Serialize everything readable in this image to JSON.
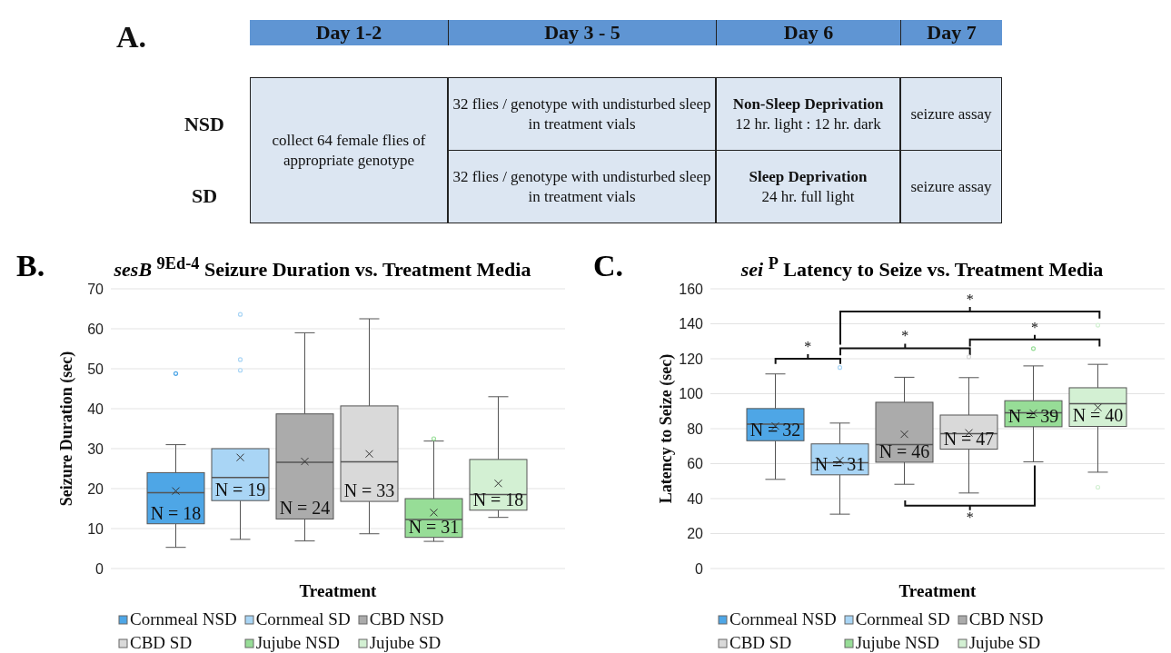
{
  "chart_data": [
    {
      "type": "other",
      "annotations": [
        "A.",
        "Day 1-2",
        "Day 3 - 5",
        "Day 6",
        "Day 7",
        "NSD",
        "SD",
        "collect 64 female flies of appropriate genotype",
        "32 flies / genotype with undisturbed sleep in treatment vials",
        "Non-Sleep Deprivation",
        "12 hr. light : 12 hr. dark",
        "seizure assay",
        "32 flies / genotype with undisturbed sleep in treatment vials",
        "Sleep Deprivation",
        "24 hr. full light",
        "seizure assay"
      ]
    },
    {
      "type": "box",
      "title": "sesB $^{9Ed-4}$ Seizure Duration vs. Treatment Media",
      "xlabel": "Treatment",
      "ylabel": "Seizure Duration (sec)",
      "categories": [
        null
      ],
      "series": [
        {
          "name": "Cornmeal NSD",
          "color": "#4ea6e6",
          "boxes": [
            {
              "low": 5.3,
              "q1": 11.2,
              "median": 19,
              "q3": 24,
              "high": 31,
              "mean": 19.4,
              "outliers": [
                48.8
              ]
            }
          ]
        },
        {
          "name": "Cornmeal SD",
          "color": "#a9d5f5",
          "boxes": [
            {
              "low": 7.3,
              "q1": 17,
              "median": 22.8,
              "q3": 30,
              "high": 30,
              "mean": 27.8,
              "outliers": [
                49.6,
                52.3,
                63.6
              ]
            }
          ]
        },
        {
          "name": "CBD NSD",
          "color": "#ababab",
          "boxes": [
            {
              "low": 6.9,
              "q1": 12.4,
              "median": 26.6,
              "q3": 38.7,
              "high": 59,
              "mean": 26.8
            }
          ]
        },
        {
          "name": "CBD SD",
          "color": "#d9d9d9",
          "boxes": [
            {
              "low": 8.7,
              "q1": 16.8,
              "median": 26.7,
              "q3": 40.7,
              "high": 62.5,
              "mean": 28.7
            }
          ]
        },
        {
          "name": "Jujube NSD",
          "color": "#97dd97",
          "boxes": [
            {
              "low": 6.8,
              "q1": 7.8,
              "median": 12.3,
              "q3": 17.5,
              "high": 31.9,
              "mean": 14,
              "outliers": [
                32.5
              ]
            }
          ]
        },
        {
          "name": "Jujube SD",
          "color": "#d3f0d3",
          "boxes": [
            {
              "low": 12.8,
              "q1": 14.6,
              "median": 18.5,
              "q3": 27.3,
              "high": 43,
              "mean": 21.3
            }
          ]
        }
      ],
      "ylim": [
        0,
        70
      ],
      "yticks": [
        0,
        10,
        20,
        30,
        40,
        50,
        60,
        70
      ],
      "grid": "y",
      "legend": "bottom",
      "tick_labels": "y",
      "annotations": [
        "B.",
        "N = 18",
        "N = 19",
        "N = 24",
        "N = 33",
        "N = 31",
        "N = 18"
      ]
    },
    {
      "type": "box",
      "title": "sei $^{P}$ Latency to Seize vs. Treatment Media",
      "xlabel": "Treatment",
      "ylabel": "Latency to Seize (sec)",
      "categories": [
        null
      ],
      "series": [
        {
          "name": "Cornmeal NSD",
          "color": "#4ea6e6",
          "boxes": [
            {
              "low": 51,
              "q1": 73.1,
              "median": 82.6,
              "q3": 91.5,
              "high": 111.3,
              "mean": 81.5
            }
          ]
        },
        {
          "name": "Cornmeal SD",
          "color": "#a9d5f5",
          "boxes": [
            {
              "low": 31.1,
              "q1": 53.6,
              "median": 60.5,
              "q3": 71.3,
              "high": 83.2,
              "mean": 61.8,
              "outliers": [
                115
              ]
            }
          ]
        },
        {
          "name": "CBD NSD",
          "color": "#ababab",
          "boxes": [
            {
              "low": 48.2,
              "q1": 60.8,
              "median": 70.9,
              "q3": 95.1,
              "high": 109.4,
              "mean": 76.8
            }
          ]
        },
        {
          "name": "CBD SD",
          "color": "#d9d9d9",
          "boxes": [
            {
              "low": 43.2,
              "q1": 68.3,
              "median": 77.2,
              "q3": 87.8,
              "high": 109.2,
              "mean": 77.6,
              "outliers": [
                121.1
              ]
            }
          ]
        },
        {
          "name": "Jujube NSD",
          "color": "#97dd97",
          "boxes": [
            {
              "low": 61,
              "q1": 81.1,
              "median": 89.1,
              "q3": 96,
              "high": 115.9,
              "mean": 88.9,
              "outliers": [
                125.8
              ]
            }
          ]
        },
        {
          "name": "Jujube SD",
          "color": "#d3f0d3",
          "boxes": [
            {
              "low": 55.1,
              "q1": 81.3,
              "median": 94.3,
              "q3": 103.4,
              "high": 116.8,
              "mean": 92.1,
              "outliers": [
                139.2,
                46.5
              ]
            }
          ]
        }
      ],
      "ylim": [
        0,
        160
      ],
      "yticks": [
        0,
        20,
        40,
        60,
        80,
        100,
        120,
        140,
        160
      ],
      "grid": "y",
      "legend": "bottom",
      "tick_labels": "y",
      "annotations": [
        "C.",
        "N = 32",
        "N = 31",
        "N = 46",
        "N = 47",
        "N = 39",
        "N = 40",
        "*",
        "*",
        "*",
        "*",
        "*"
      ]
    }
  ]
}
